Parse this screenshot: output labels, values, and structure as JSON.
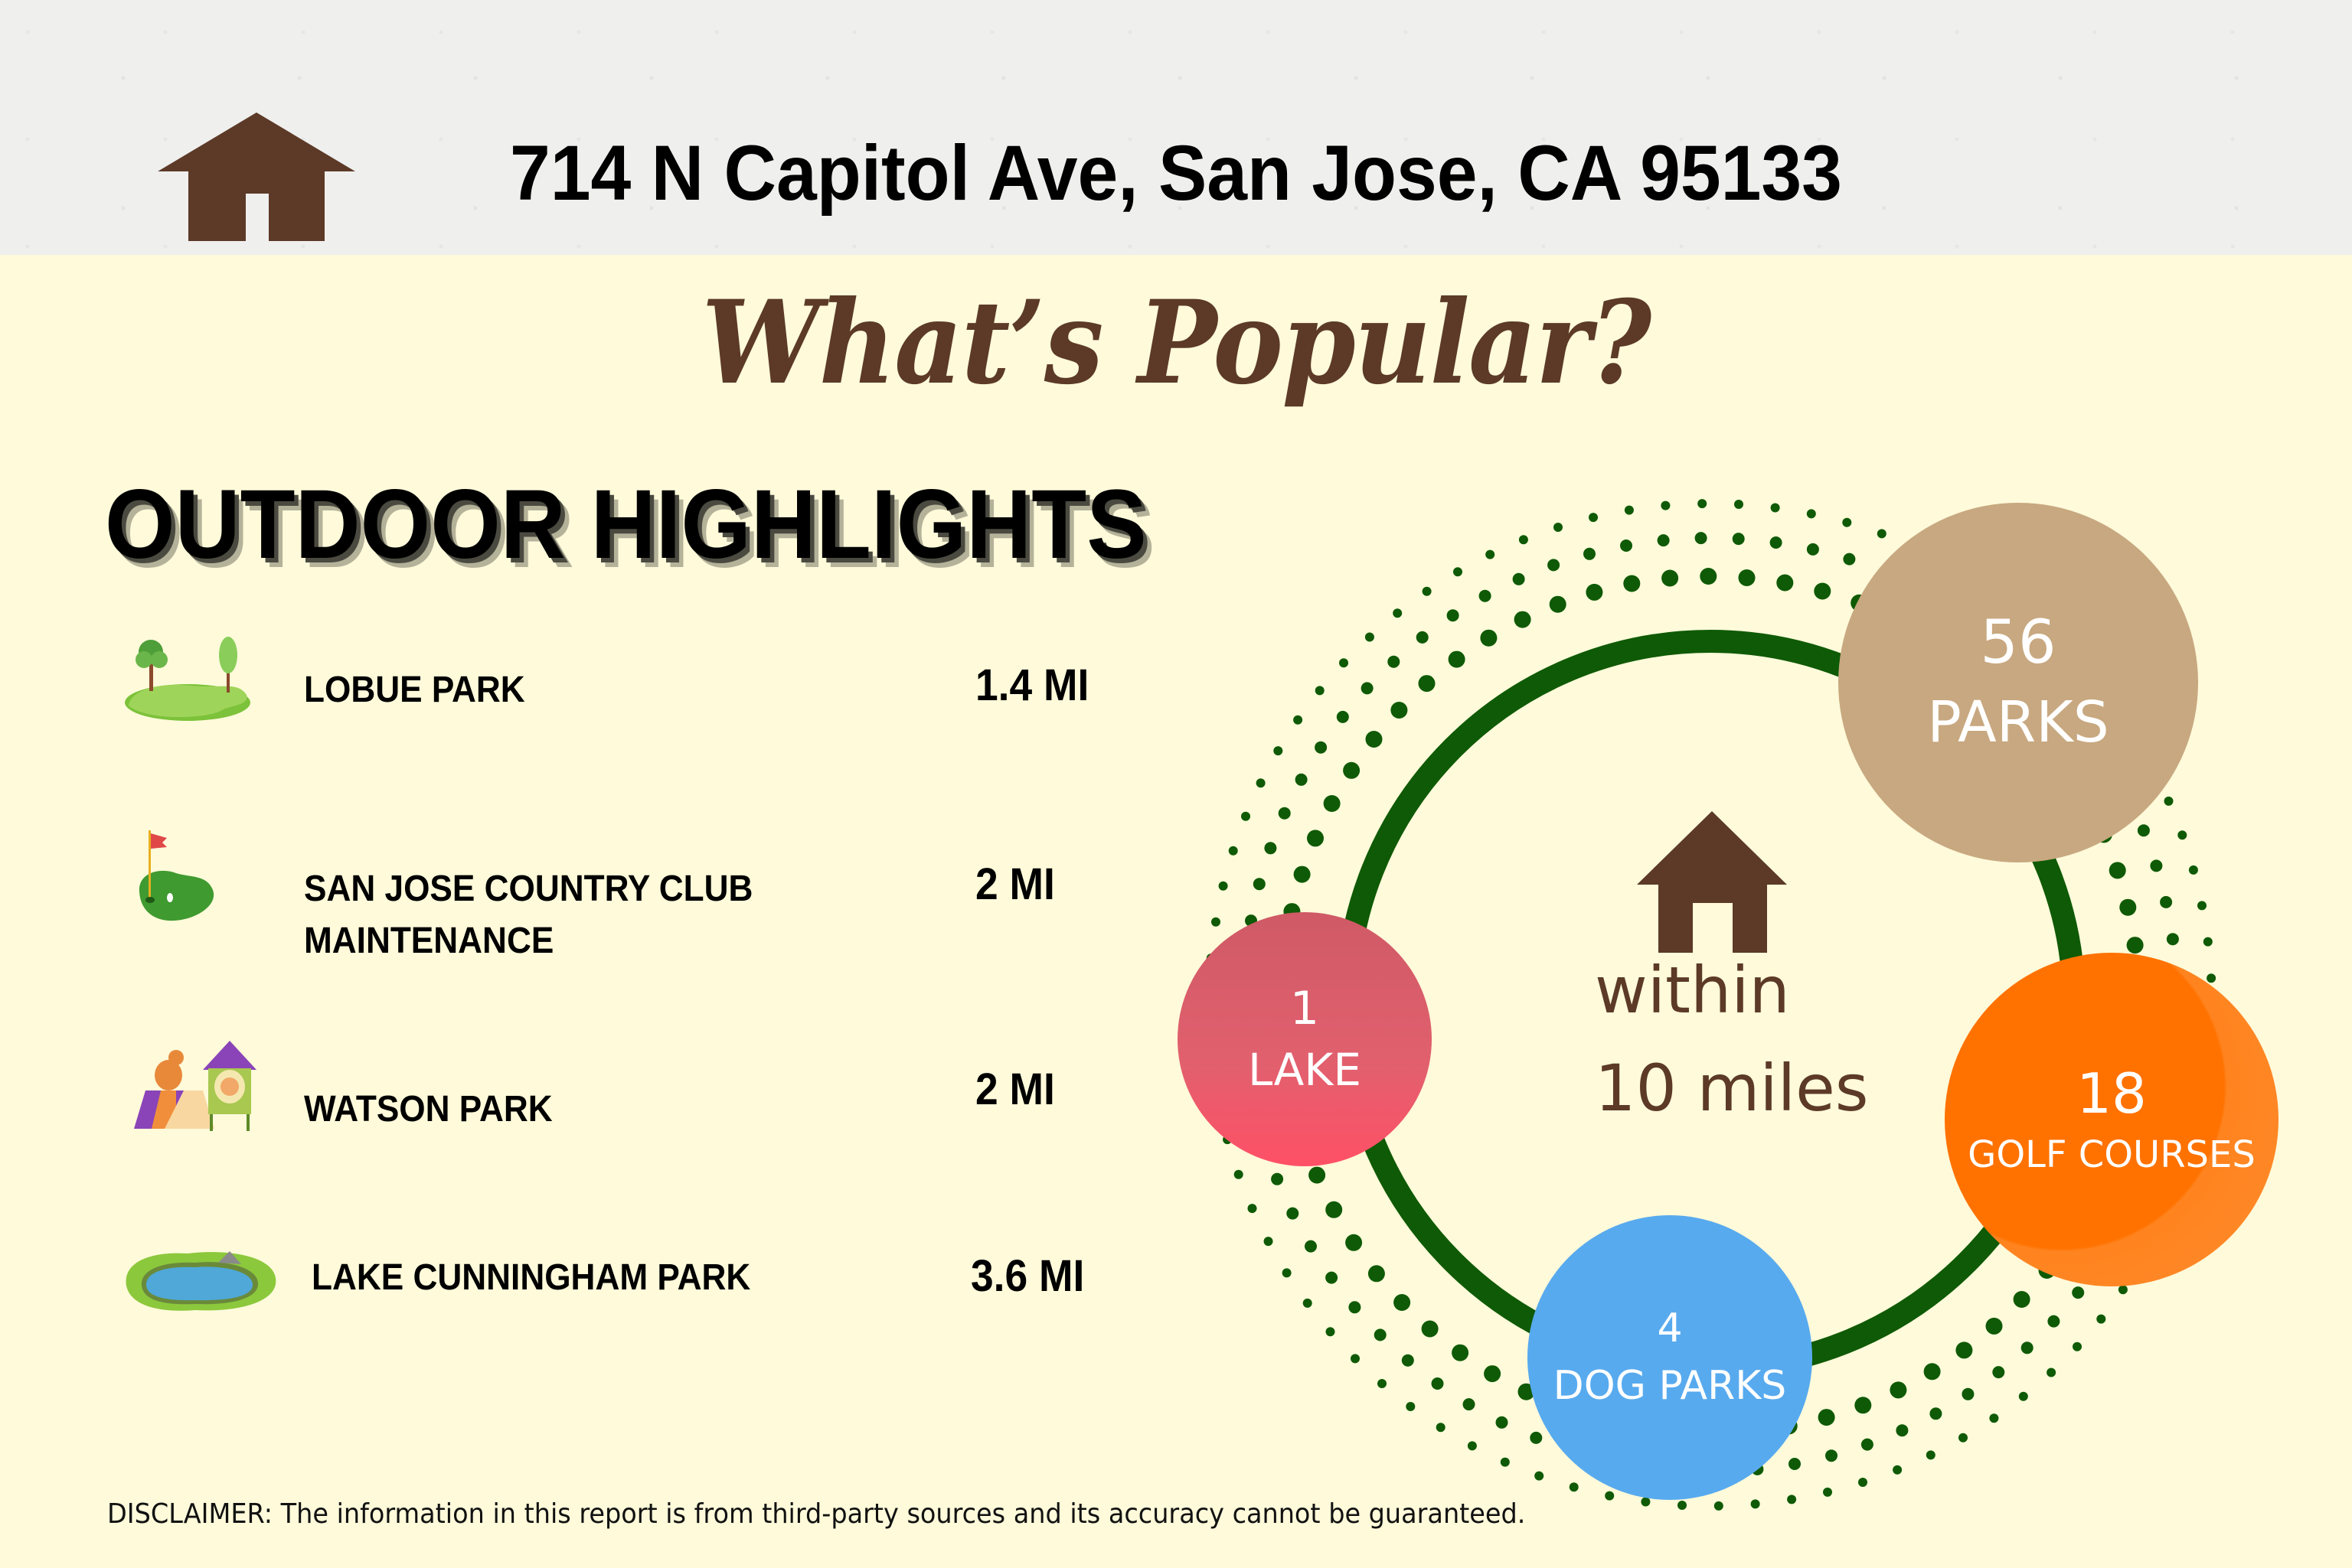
{
  "header": {
    "address": "714 N Capitol Ave, San Jose, CA 95133",
    "icon": "house-icon"
  },
  "title": "What’s Popular?",
  "section_title": "OUTDOOR HIGHLIGHTS",
  "highlights": [
    {
      "name": "LOBUE PARK",
      "distance": "1.4 MI",
      "icon": "park-trees-icon"
    },
    {
      "name_line1": "SAN JOSE COUNTRY CLUB",
      "name_line2": "MAINTENANCE",
      "distance": "2 MI",
      "icon": "golf-green-icon"
    },
    {
      "name": "WATSON PARK",
      "distance": "2 MI",
      "icon": "dog-park-icon"
    },
    {
      "name": "LAKE CUNNINGHAM PARK",
      "distance": "3.6 MI",
      "icon": "pond-icon"
    }
  ],
  "diagram": {
    "center_line1": "within",
    "center_line2": "10 miles",
    "center_icon": "house-icon",
    "bubbles": [
      {
        "count": "56",
        "label": "PARKS",
        "color": "#C8A880"
      },
      {
        "count": "1",
        "label": "LAKE",
        "color": "#E2606E"
      },
      {
        "count": "18",
        "label": "GOLF COURSES",
        "color": "#FF7508"
      },
      {
        "count": "4",
        "label": "DOG PARKS",
        "color": "#58AAEE"
      }
    ],
    "ring_color": "#0F5A06"
  },
  "colors": {
    "brown": "#5C3A27",
    "background": "#FEFADA",
    "header_band": "#EFEFEE"
  },
  "disclaimer": "DISCLAIMER: The information in this report is from third-party sources and its accuracy cannot be guaranteed."
}
